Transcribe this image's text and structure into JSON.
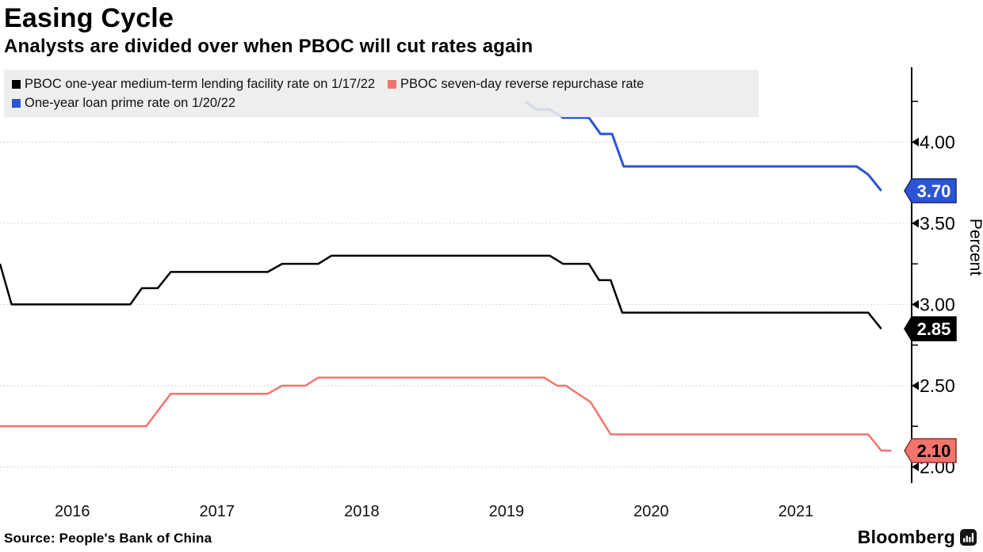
{
  "header": {
    "title": "Easing Cycle",
    "subtitle": "Analysts are divided over when PBOC will cut rates again"
  },
  "legend": {
    "items": [
      {
        "label": "PBOC one-year medium-term lending facility rate on 1/17/22",
        "color": "#000000"
      },
      {
        "label": "PBOC seven-day reverse repurchase rate",
        "color": "#f4736d"
      },
      {
        "label": "One-year loan prime rate on 1/20/22",
        "color": "#2b54d6"
      }
    ]
  },
  "footer": {
    "source": "Source: People's Bank of China",
    "brand": "Bloomberg",
    "brand_icon": "bloomberg-bars-icon"
  },
  "chart_data": {
    "type": "line",
    "title": "Easing Cycle",
    "subtitle": "Analysts are divided over when PBOC will cut rates again",
    "xlabel": "",
    "ylabel": "Percent",
    "grid": "horizontal-dotted",
    "grid_color": "#c9c9c9",
    "axis_color": "#000000",
    "legend_position": "top",
    "x_range": [
      2016.0,
      2022.3
    ],
    "y_range": [
      1.9,
      4.46
    ],
    "x_tick_labels": [
      "2016",
      "2017",
      "2018",
      "2019",
      "2020",
      "2021"
    ],
    "x_tick_positions": [
      2016.5,
      2017.5,
      2018.5,
      2019.5,
      2020.5,
      2021.5
    ],
    "y_major_ticks": [
      4.0,
      3.5,
      3.0,
      2.5,
      2.0
    ],
    "y_major_tick_labels": [
      "4.00",
      "3.50",
      "3.00",
      "2.50",
      "2.00"
    ],
    "y_minor_ticks": [
      4.25,
      3.75,
      3.25,
      2.75,
      2.25
    ],
    "series": [
      {
        "name": "PBOC one-year medium-term lending facility rate on 1/17/22",
        "color": "#000000",
        "width": 2.5,
        "points": [
          [
            2016.0,
            3.25
          ],
          [
            2016.08,
            3.0
          ],
          [
            2016.9,
            3.0
          ],
          [
            2016.98,
            3.1
          ],
          [
            2017.09,
            3.1
          ],
          [
            2017.18,
            3.2
          ],
          [
            2017.85,
            3.2
          ],
          [
            2017.95,
            3.25
          ],
          [
            2018.2,
            3.25
          ],
          [
            2018.29,
            3.3
          ],
          [
            2019.8,
            3.3
          ],
          [
            2019.89,
            3.25
          ],
          [
            2020.07,
            3.25
          ],
          [
            2020.14,
            3.15
          ],
          [
            2020.22,
            3.15
          ],
          [
            2020.3,
            2.95
          ],
          [
            2022.0,
            2.95
          ],
          [
            2022.09,
            2.85
          ]
        ]
      },
      {
        "name": "PBOC seven-day reverse repurchase rate",
        "color": "#f4736d",
        "width": 2.5,
        "points": [
          [
            2016.0,
            2.25
          ],
          [
            2017.01,
            2.25
          ],
          [
            2017.18,
            2.45
          ],
          [
            2017.85,
            2.45
          ],
          [
            2017.95,
            2.5
          ],
          [
            2018.11,
            2.5
          ],
          [
            2018.2,
            2.55
          ],
          [
            2019.76,
            2.55
          ],
          [
            2019.85,
            2.5
          ],
          [
            2019.91,
            2.5
          ],
          [
            2020.08,
            2.4
          ],
          [
            2020.22,
            2.2
          ],
          [
            2022.0,
            2.2
          ],
          [
            2022.09,
            2.1
          ],
          [
            2022.16,
            2.1
          ]
        ]
      },
      {
        "name": "One-year loan prime rate on 1/20/22",
        "color": "#2b54d6",
        "width": 3,
        "points": [
          [
            2019.63,
            4.25
          ],
          [
            2019.71,
            4.2
          ],
          [
            2019.8,
            4.2
          ],
          [
            2019.89,
            4.15
          ],
          [
            2020.07,
            4.15
          ],
          [
            2020.15,
            4.05
          ],
          [
            2020.23,
            4.05
          ],
          [
            2020.31,
            3.85
          ],
          [
            2021.92,
            3.85
          ],
          [
            2022.0,
            3.8
          ],
          [
            2022.09,
            3.7
          ]
        ]
      }
    ],
    "end_labels": [
      {
        "label": "3.70",
        "value": 3.7,
        "fill": "#2b54d6",
        "border": "#16296f",
        "text_color": "#ffffff"
      },
      {
        "label": "2.85",
        "value": 2.85,
        "fill": "#000000",
        "border": "#000000",
        "text_color": "#ffffff"
      },
      {
        "label": "2.10",
        "value": 2.1,
        "fill": "#f4736d",
        "border": "#7e352c",
        "text_color": "#000000"
      }
    ]
  }
}
